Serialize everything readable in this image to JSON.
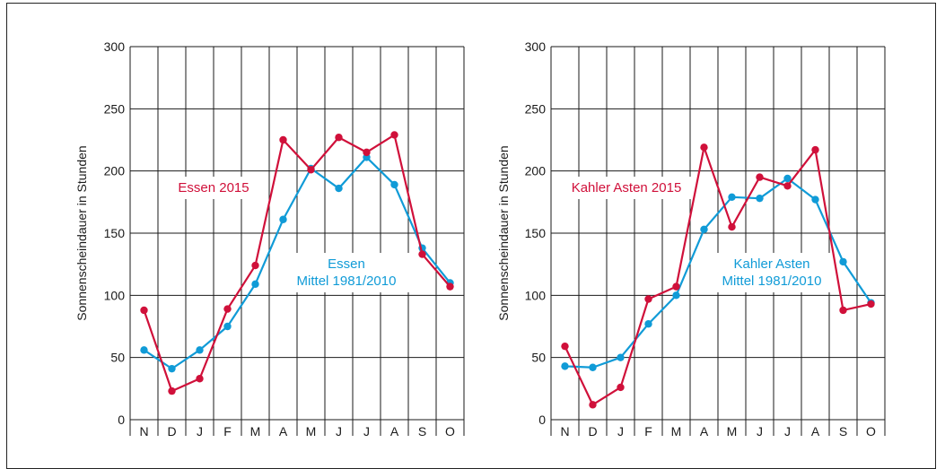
{
  "colors": {
    "current": "#d0103a",
    "mean": "#109bd7",
    "grid": "#1a1a1a"
  },
  "chart_data": [
    {
      "type": "line",
      "ylabel": "Sonnenscheindauer in Stunden",
      "ylim": [
        0,
        300
      ],
      "yticks": [
        0,
        50,
        100,
        150,
        200,
        250,
        300
      ],
      "categories": [
        "N",
        "D",
        "J",
        "F",
        "M",
        "A",
        "M",
        "J",
        "J",
        "A",
        "S",
        "O"
      ],
      "grid": true,
      "series": [
        {
          "name": "Essen 2015",
          "color": "#d0103a",
          "values": [
            88,
            23,
            33,
            89,
            124,
            225,
            201,
            227,
            215,
            229,
            133,
            107
          ]
        },
        {
          "name": "Essen Mittel 1981/2010",
          "color": "#109bd7",
          "values": [
            56,
            41,
            56,
            75,
            109,
            161,
            202,
            186,
            211,
            189,
            138,
            110
          ]
        }
      ],
      "labels": [
        {
          "lines": [
            "Essen 2015"
          ],
          "color": "#d0103a"
        },
        {
          "lines": [
            "Essen",
            "Mittel 1981/2010"
          ],
          "color": "#109bd7"
        }
      ]
    },
    {
      "type": "line",
      "ylabel": "Sonnenscheindauer in Stunden",
      "ylim": [
        0,
        300
      ],
      "yticks": [
        0,
        50,
        100,
        150,
        200,
        250,
        300
      ],
      "categories": [
        "N",
        "D",
        "J",
        "F",
        "M",
        "A",
        "M",
        "J",
        "J",
        "A",
        "S",
        "O"
      ],
      "grid": true,
      "series": [
        {
          "name": "Kahler Asten 2015",
          "color": "#d0103a",
          "values": [
            59,
            12,
            26,
            97,
            107,
            219,
            155,
            195,
            188,
            217,
            88,
            93
          ]
        },
        {
          "name": "Kahler Asten Mittel 1981/2010",
          "color": "#109bd7",
          "values": [
            43,
            42,
            50,
            77,
            100,
            153,
            179,
            178,
            194,
            177,
            127,
            94
          ]
        }
      ],
      "labels": [
        {
          "lines": [
            "Kahler Asten 2015"
          ],
          "color": "#d0103a"
        },
        {
          "lines": [
            "Kahler Asten",
            "Mittel 1981/2010"
          ],
          "color": "#109bd7"
        }
      ]
    }
  ]
}
